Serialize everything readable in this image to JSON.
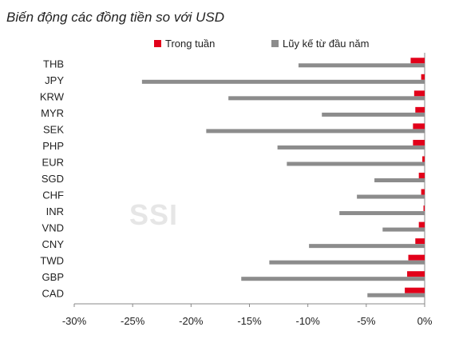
{
  "title": "Biến động các đồng tiền so với USD",
  "watermark": "SSI",
  "chart_data": {
    "type": "bar",
    "orientation": "horizontal",
    "title": "Biến động các đồng tiền so với USD",
    "categories": [
      "THB",
      "JPY",
      "KRW",
      "MYR",
      "SEK",
      "PHP",
      "EUR",
      "SGD",
      "CHF",
      "INR",
      "VND",
      "CNY",
      "TWD",
      "GBP",
      "CAD"
    ],
    "series": [
      {
        "name": "Trong tuần",
        "color": "#e2001a",
        "values": [
          -1.2,
          -0.3,
          -0.9,
          -0.8,
          -1.0,
          -1.0,
          -0.2,
          -0.5,
          -0.3,
          -0.1,
          -0.5,
          -0.8,
          -1.4,
          -1.5,
          -1.7
        ]
      },
      {
        "name": "Lũy kế từ đầu năm",
        "color": "#8c8c8c",
        "values": [
          -10.8,
          -24.2,
          -16.8,
          -8.8,
          -18.7,
          -12.6,
          -11.8,
          -4.3,
          -5.8,
          -7.3,
          -3.6,
          -9.9,
          -13.3,
          -15.7,
          -4.9
        ]
      }
    ],
    "xlim": [
      -30,
      0
    ],
    "xticks": [
      "-30%",
      "-25%",
      "-20%",
      "-15%",
      "-10%",
      "-5%",
      "0%"
    ],
    "xtick_values": [
      -30,
      -25,
      -20,
      -15,
      -10,
      -5,
      0
    ],
    "legend_position": "top",
    "grid": false
  }
}
